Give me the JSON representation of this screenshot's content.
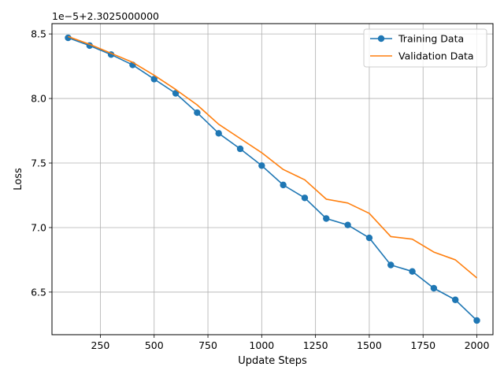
{
  "chart_data": {
    "type": "line",
    "title": "",
    "xlabel": "Update Steps",
    "ylabel": "Loss",
    "offset_text": "1e−5+2.3025000000",
    "xlim": [
      25,
      2075
    ],
    "ylim": [
      6.17,
      8.58
    ],
    "x_ticks": [
      250,
      500,
      750,
      1000,
      1250,
      1500,
      1750,
      2000
    ],
    "x_tick_labels": [
      "250",
      "500",
      "750",
      "1000",
      "1250",
      "1500",
      "1750",
      "2000"
    ],
    "y_ticks": [
      6.5,
      7.0,
      7.5,
      8.0,
      8.5
    ],
    "y_tick_labels": [
      "6.5",
      "7.0",
      "7.5",
      "8.0",
      "8.5"
    ],
    "grid": true,
    "legend_position": "top-right",
    "x": [
      100,
      200,
      300,
      400,
      500,
      600,
      700,
      800,
      900,
      1000,
      1100,
      1200,
      1300,
      1400,
      1500,
      1600,
      1700,
      1800,
      1900,
      2000
    ],
    "series": [
      {
        "name": "Training Data",
        "color": "#1f77b4",
        "marker": "circle",
        "values": [
          8.47,
          8.41,
          8.34,
          8.26,
          8.15,
          8.04,
          7.89,
          7.73,
          7.61,
          7.48,
          7.33,
          7.23,
          7.07,
          7.02,
          6.92,
          6.71,
          6.66,
          6.53,
          6.44,
          6.28
        ]
      },
      {
        "name": "Validation Data",
        "color": "#ff7f0e",
        "marker": "none",
        "values": [
          8.48,
          8.42,
          8.35,
          8.28,
          8.18,
          8.07,
          7.95,
          7.8,
          7.69,
          7.58,
          7.45,
          7.37,
          7.22,
          7.19,
          7.11,
          6.93,
          6.91,
          6.81,
          6.75,
          6.61
        ]
      }
    ]
  }
}
